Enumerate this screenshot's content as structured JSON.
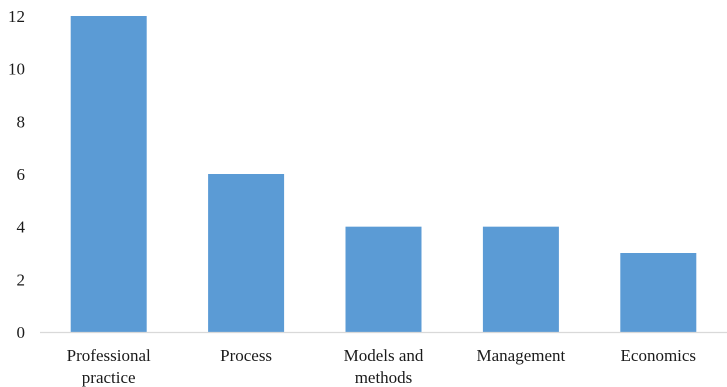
{
  "chart_data": {
    "type": "bar",
    "title": "",
    "xlabel": "",
    "ylabel": "",
    "categories": [
      "Professional practice",
      "Process",
      "Models and methods",
      "Management",
      "Economics"
    ],
    "category_lines": [
      [
        "Professional",
        "practice"
      ],
      [
        "Process"
      ],
      [
        "Models and",
        "methods"
      ],
      [
        "Management"
      ],
      [
        "Economics"
      ]
    ],
    "values": [
      12,
      6,
      4,
      4,
      3
    ],
    "ylim": [
      0,
      12
    ],
    "yticks": [
      0,
      2,
      4,
      6,
      8,
      10,
      12
    ],
    "grid": false,
    "legend": "none",
    "bar_color": "#5b9bd5",
    "axis_color": "#d9d9d9"
  }
}
